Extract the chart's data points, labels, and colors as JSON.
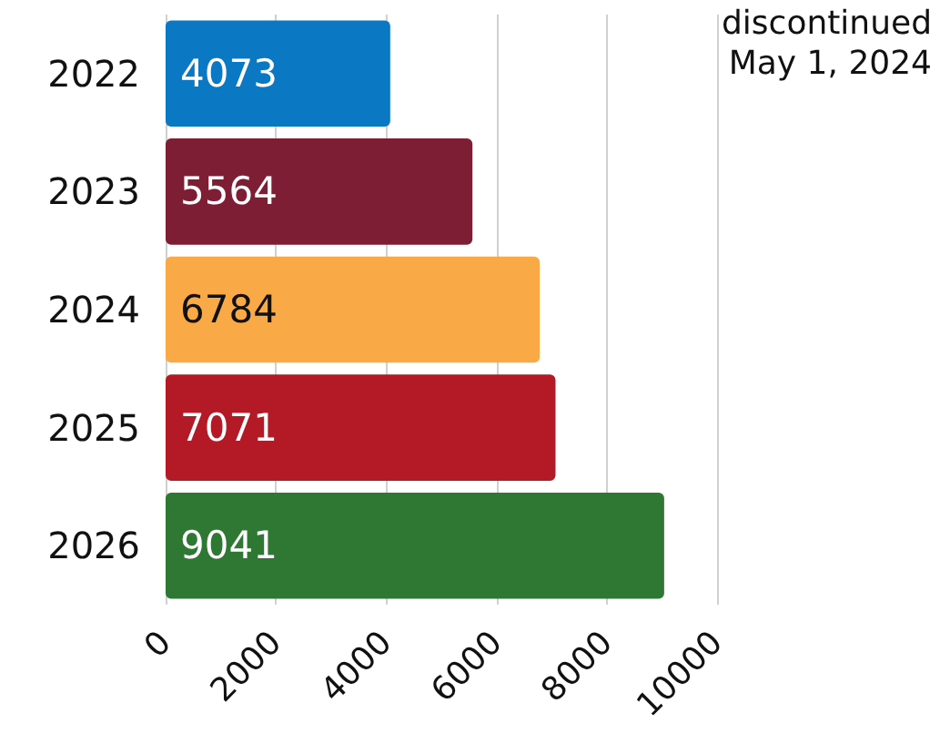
{
  "chart_data": {
    "type": "bar",
    "orientation": "horizontal",
    "categories": [
      "2022",
      "2023",
      "2024",
      "2025",
      "2026"
    ],
    "values": [
      4073,
      5564,
      6784,
      7071,
      9041
    ],
    "colors": [
      "#0a78c2",
      "#7e1e35",
      "#f9a945",
      "#b31a26",
      "#2e7833"
    ],
    "xlim": [
      0,
      10000
    ],
    "xticks": [
      0,
      2000,
      4000,
      6000,
      8000,
      10000
    ],
    "grid": "x",
    "data_labels": true,
    "annotations": [
      "discontinued\nMay 1, 2024"
    ]
  }
}
